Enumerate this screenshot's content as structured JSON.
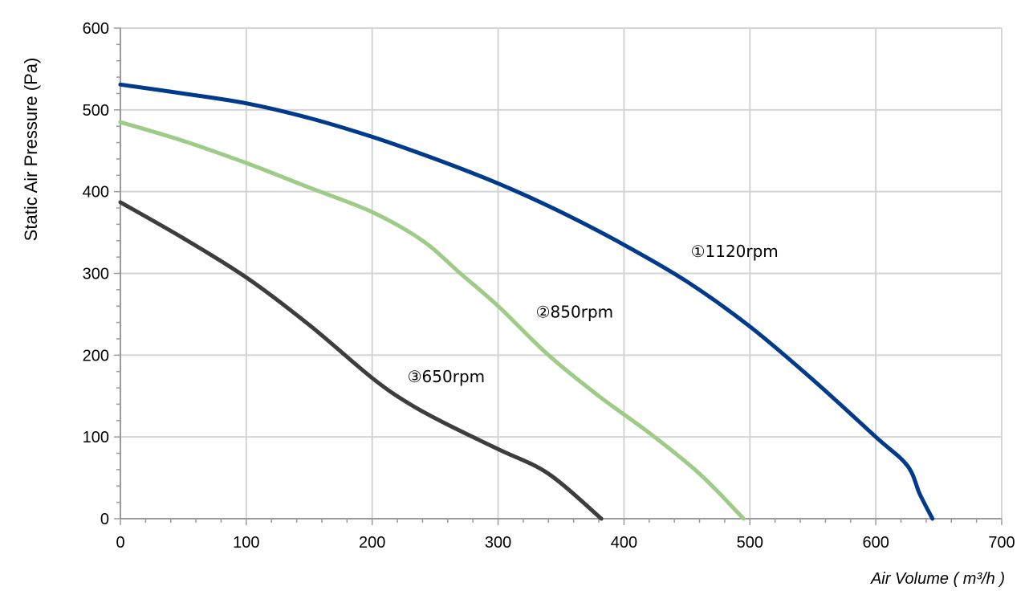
{
  "chart_data": {
    "type": "line",
    "title": "",
    "xlabel": "Air Volume ( m³/h )",
    "ylabel": "Static Air Pressure  (Pa)",
    "xlim": [
      0,
      700
    ],
    "ylim": [
      0,
      600
    ],
    "xticks": [
      "0",
      "100",
      "200",
      "300",
      "400",
      "500",
      "600",
      "700"
    ],
    "yticks": [
      "0",
      "100",
      "200",
      "300",
      "400",
      "500",
      "600"
    ],
    "grid": true,
    "series": [
      {
        "name": "①1120rpm",
        "color": "#003a8c",
        "points": [
          [
            0,
            531
          ],
          [
            50,
            520
          ],
          [
            100,
            508
          ],
          [
            150,
            490
          ],
          [
            200,
            467
          ],
          [
            250,
            440
          ],
          [
            300,
            410
          ],
          [
            350,
            375
          ],
          [
            400,
            335
          ],
          [
            450,
            290
          ],
          [
            500,
            235
          ],
          [
            550,
            170
          ],
          [
            600,
            100
          ],
          [
            625,
            65
          ],
          [
            635,
            30
          ],
          [
            645,
            0
          ]
        ]
      },
      {
        "name": "②850rpm",
        "color": "#9ecb87",
        "points": [
          [
            0,
            485
          ],
          [
            50,
            462
          ],
          [
            100,
            435
          ],
          [
            150,
            405
          ],
          [
            200,
            375
          ],
          [
            240,
            340
          ],
          [
            270,
            300
          ],
          [
            300,
            260
          ],
          [
            340,
            200
          ],
          [
            380,
            150
          ],
          [
            420,
            105
          ],
          [
            460,
            55
          ],
          [
            495,
            0
          ]
        ]
      },
      {
        "name": "③650rpm",
        "color": "#3d3d3d",
        "points": [
          [
            0,
            387
          ],
          [
            50,
            343
          ],
          [
            100,
            295
          ],
          [
            150,
            237
          ],
          [
            200,
            172
          ],
          [
            230,
            140
          ],
          [
            260,
            115
          ],
          [
            300,
            85
          ],
          [
            340,
            55
          ],
          [
            382,
            0
          ]
        ]
      }
    ],
    "annotations": [
      {
        "text": "①1120rpm",
        "x": 453,
        "y": 320
      },
      {
        "text": "②850rpm",
        "x": 330,
        "y": 246
      },
      {
        "text": "③650rpm",
        "x": 228,
        "y": 167
      }
    ]
  }
}
